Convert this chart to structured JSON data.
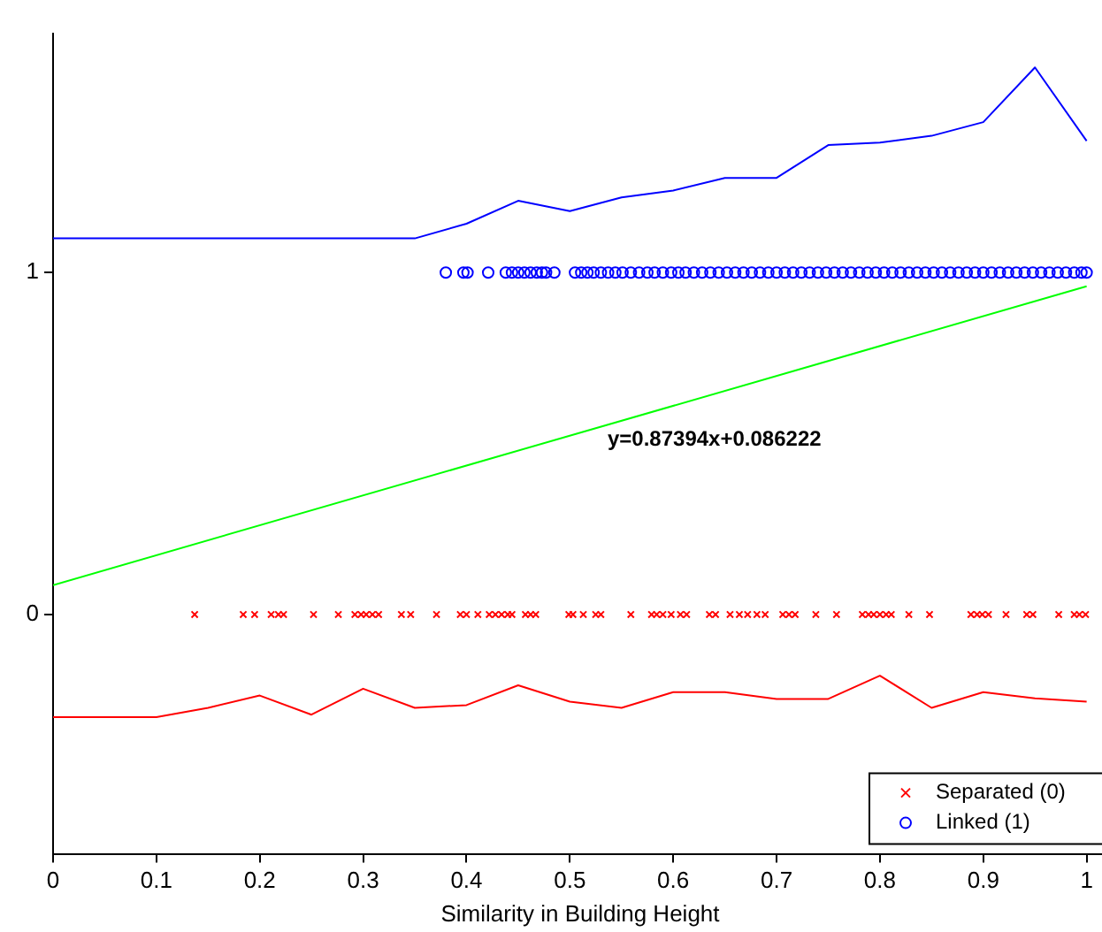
{
  "chart_data": {
    "type": "scatter",
    "xlabel": "Similarity in Building Height",
    "xlim": [
      0,
      1.02
    ],
    "ylim": [
      -0.7,
      1.7
    ],
    "xticks": [
      0,
      0.1,
      0.2,
      0.3,
      0.4,
      0.5,
      0.6,
      0.7,
      0.8,
      0.9,
      1
    ],
    "yticks": [
      0,
      1
    ],
    "grid": false,
    "legend": "bottom right",
    "annotations": [
      "y=0.87394x+0.086222"
    ],
    "series": [
      {
        "name": "Separated (0)",
        "type": "scatter",
        "marker": "cross",
        "color": "#ff0000",
        "x": [
          0.137,
          0.184,
          0.195,
          0.211,
          0.218,
          0.223,
          0.252,
          0.276,
          0.292,
          0.298,
          0.303,
          0.309,
          0.315,
          0.337,
          0.346,
          0.371,
          0.394,
          0.4,
          0.411,
          0.422,
          0.428,
          0.434,
          0.44,
          0.444,
          0.457,
          0.462,
          0.467,
          0.499,
          0.503,
          0.513,
          0.525,
          0.53,
          0.559,
          0.579,
          0.584,
          0.59,
          0.598,
          0.607,
          0.613,
          0.635,
          0.641,
          0.655,
          0.664,
          0.672,
          0.681,
          0.689,
          0.706,
          0.712,
          0.718,
          0.738,
          0.758,
          0.783,
          0.789,
          0.794,
          0.8,
          0.806,
          0.811,
          0.828,
          0.848,
          0.888,
          0.894,
          0.899,
          0.905,
          0.922,
          0.942,
          0.948,
          0.973,
          0.988,
          0.993,
          0.999
        ],
        "values": [
          0,
          0,
          0,
          0,
          0,
          0,
          0,
          0,
          0,
          0,
          0,
          0,
          0,
          0,
          0,
          0,
          0,
          0,
          0,
          0,
          0,
          0,
          0,
          0,
          0,
          0,
          0,
          0,
          0,
          0,
          0,
          0,
          0,
          0,
          0,
          0,
          0,
          0,
          0,
          0,
          0,
          0,
          0,
          0,
          0,
          0,
          0,
          0,
          0,
          0,
          0,
          0,
          0,
          0,
          0,
          0,
          0,
          0,
          0,
          0,
          0,
          0,
          0,
          0,
          0,
          0,
          0,
          0,
          0,
          0
        ]
      },
      {
        "name": "Linked (1)",
        "type": "scatter",
        "marker": "circle",
        "color": "#0000ff",
        "x": [
          0.38,
          0.397,
          0.401,
          0.421,
          0.438,
          0.444,
          0.45,
          0.456,
          0.462,
          0.468,
          0.473,
          0.477,
          0.485,
          0.505,
          0.511,
          0.517,
          0.523,
          0.53,
          0.537,
          0.544,
          0.551,
          0.559,
          0.567,
          0.575,
          0.582,
          0.59,
          0.598,
          0.605,
          0.612,
          0.62,
          0.628,
          0.636,
          0.644,
          0.652,
          0.66,
          0.668,
          0.676,
          0.684,
          0.692,
          0.7,
          0.708,
          0.716,
          0.724,
          0.732,
          0.74,
          0.748,
          0.756,
          0.764,
          0.772,
          0.78,
          0.788,
          0.796,
          0.804,
          0.812,
          0.82,
          0.828,
          0.836,
          0.844,
          0.852,
          0.86,
          0.868,
          0.876,
          0.884,
          0.892,
          0.9,
          0.908,
          0.916,
          0.924,
          0.932,
          0.94,
          0.948,
          0.956,
          0.964,
          0.972,
          0.98,
          0.988,
          0.995,
          1.0
        ],
        "values": [
          1,
          1,
          1,
          1,
          1,
          1,
          1,
          1,
          1,
          1,
          1,
          1,
          1,
          1,
          1,
          1,
          1,
          1,
          1,
          1,
          1,
          1,
          1,
          1,
          1,
          1,
          1,
          1,
          1,
          1,
          1,
          1,
          1,
          1,
          1,
          1,
          1,
          1,
          1,
          1,
          1,
          1,
          1,
          1,
          1,
          1,
          1,
          1,
          1,
          1,
          1,
          1,
          1,
          1,
          1,
          1,
          1,
          1,
          1,
          1,
          1,
          1,
          1,
          1,
          1,
          1,
          1,
          1,
          1,
          1,
          1,
          1,
          1,
          1,
          1,
          1,
          1,
          1
        ]
      },
      {
        "type": "line",
        "marker": "none",
        "color": "#ff0000",
        "x": [
          0,
          0.1,
          0.15,
          0.2,
          0.25,
          0.3,
          0.35,
          0.4,
          0.45,
          0.5,
          0.55,
          0.6,
          0.65,
          0.7,
          0.75,
          0.8,
          0.85,
          0.9,
          0.95,
          1
        ],
        "values": [
          -0.3,
          -0.3,
          -0.273,
          -0.237,
          -0.293,
          -0.217,
          -0.273,
          -0.265,
          -0.207,
          -0.255,
          -0.273,
          -0.227,
          -0.227,
          -0.247,
          -0.247,
          -0.179,
          -0.273,
          -0.227,
          -0.245,
          -0.255
        ]
      },
      {
        "type": "line",
        "marker": "none",
        "color": "#0000ff",
        "x": [
          0,
          0.35,
          0.4,
          0.45,
          0.5,
          0.55,
          0.6,
          0.65,
          0.7,
          0.75,
          0.8,
          0.85,
          0.9,
          0.95,
          1
        ],
        "values": [
          1.1,
          1.1,
          1.143,
          1.21,
          1.18,
          1.22,
          1.24,
          1.277,
          1.277,
          1.373,
          1.38,
          1.4,
          1.44,
          1.6,
          1.385
        ]
      },
      {
        "type": "line",
        "marker": "none",
        "color": "#00ff00",
        "x": [
          0,
          1
        ],
        "values": [
          0.086,
          0.96
        ]
      }
    ]
  }
}
